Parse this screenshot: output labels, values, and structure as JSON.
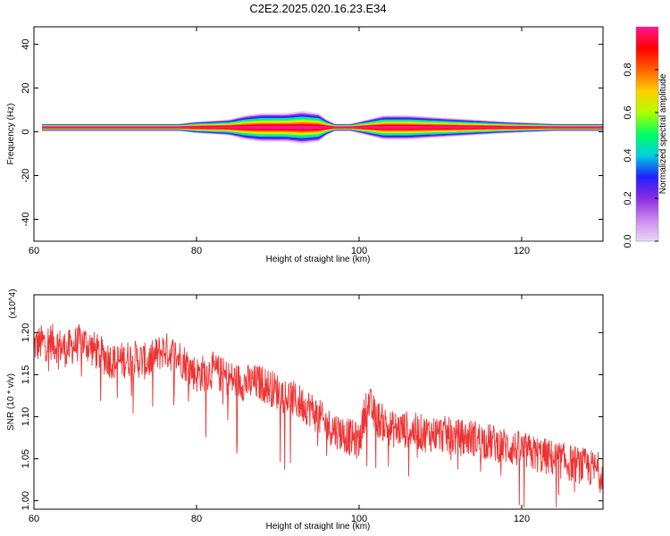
{
  "title": "C2E2.2025.020.16.23.E34",
  "colors": {
    "snr_line": "#ee3333",
    "colormap": [
      "#e8d8f8",
      "#cc88ee",
      "#8a2be2",
      "#2020ff",
      "#00d0e0",
      "#00ff60",
      "#b0ff00",
      "#ffd000",
      "#ff6000",
      "#ff0000",
      "#ff1493"
    ]
  },
  "chart_data": [
    {
      "type": "heatmap",
      "xlabel": "Height of straight line (km)",
      "ylabel": "Frequency (Hz)",
      "xlim": [
        60,
        130
      ],
      "ylim": [
        -50,
        48
      ],
      "xticks": [
        "60",
        "80",
        "100",
        "120"
      ],
      "yticks": [
        "40",
        "20",
        "0",
        "-20",
        "-40"
      ],
      "grid": false,
      "colorbar": {
        "label": "Normalized spectral amplitude",
        "range": [
          0,
          1
        ],
        "ticks": [
          "0.0",
          "0.2",
          "0.4",
          "0.6",
          "0.8"
        ]
      },
      "band": {
        "center_frequency": 2,
        "x_start": 61,
        "x_end": 130,
        "x": [
          61,
          78,
          80,
          84,
          86,
          88,
          91,
          93,
          95,
          96,
          97,
          99,
          101,
          103,
          106,
          110,
          114,
          118,
          124,
          130
        ],
        "spread_hz": [
          1,
          1,
          2,
          3,
          5,
          6,
          6,
          7,
          6,
          3,
          1,
          1,
          3,
          5,
          5,
          4,
          3,
          2,
          1,
          1
        ]
      }
    },
    {
      "type": "line",
      "xlabel": "Height of straight line (km)",
      "ylabel": "SNR (10 * v/v)",
      "yscale_label": "(x10^4)",
      "xlim": [
        60,
        130
      ],
      "ylim": [
        0.99,
        1.245
      ],
      "xticks": [
        "60",
        "80",
        "100",
        "120"
      ],
      "yticks": [
        "1.20",
        "1.15",
        "1.10",
        "1.05",
        "1.00"
      ],
      "grid": false,
      "series": [
        {
          "x": [
            60,
            62,
            64,
            66,
            68,
            70,
            72,
            74,
            76,
            78,
            80,
            82,
            84,
            86,
            88,
            90,
            92,
            94,
            96,
            98,
            100,
            101,
            102,
            104,
            106,
            108,
            110,
            112,
            114,
            116,
            118,
            120,
            122,
            124,
            126,
            128,
            130
          ],
          "values": [
            1.185,
            1.19,
            1.18,
            1.19,
            1.175,
            1.165,
            1.17,
            1.165,
            1.18,
            1.17,
            1.15,
            1.155,
            1.145,
            1.14,
            1.14,
            1.13,
            1.12,
            1.11,
            1.09,
            1.08,
            1.07,
            1.12,
            1.1,
            1.085,
            1.085,
            1.08,
            1.08,
            1.075,
            1.075,
            1.07,
            1.065,
            1.06,
            1.055,
            1.05,
            1.045,
            1.04,
            1.035
          ]
        }
      ]
    }
  ]
}
